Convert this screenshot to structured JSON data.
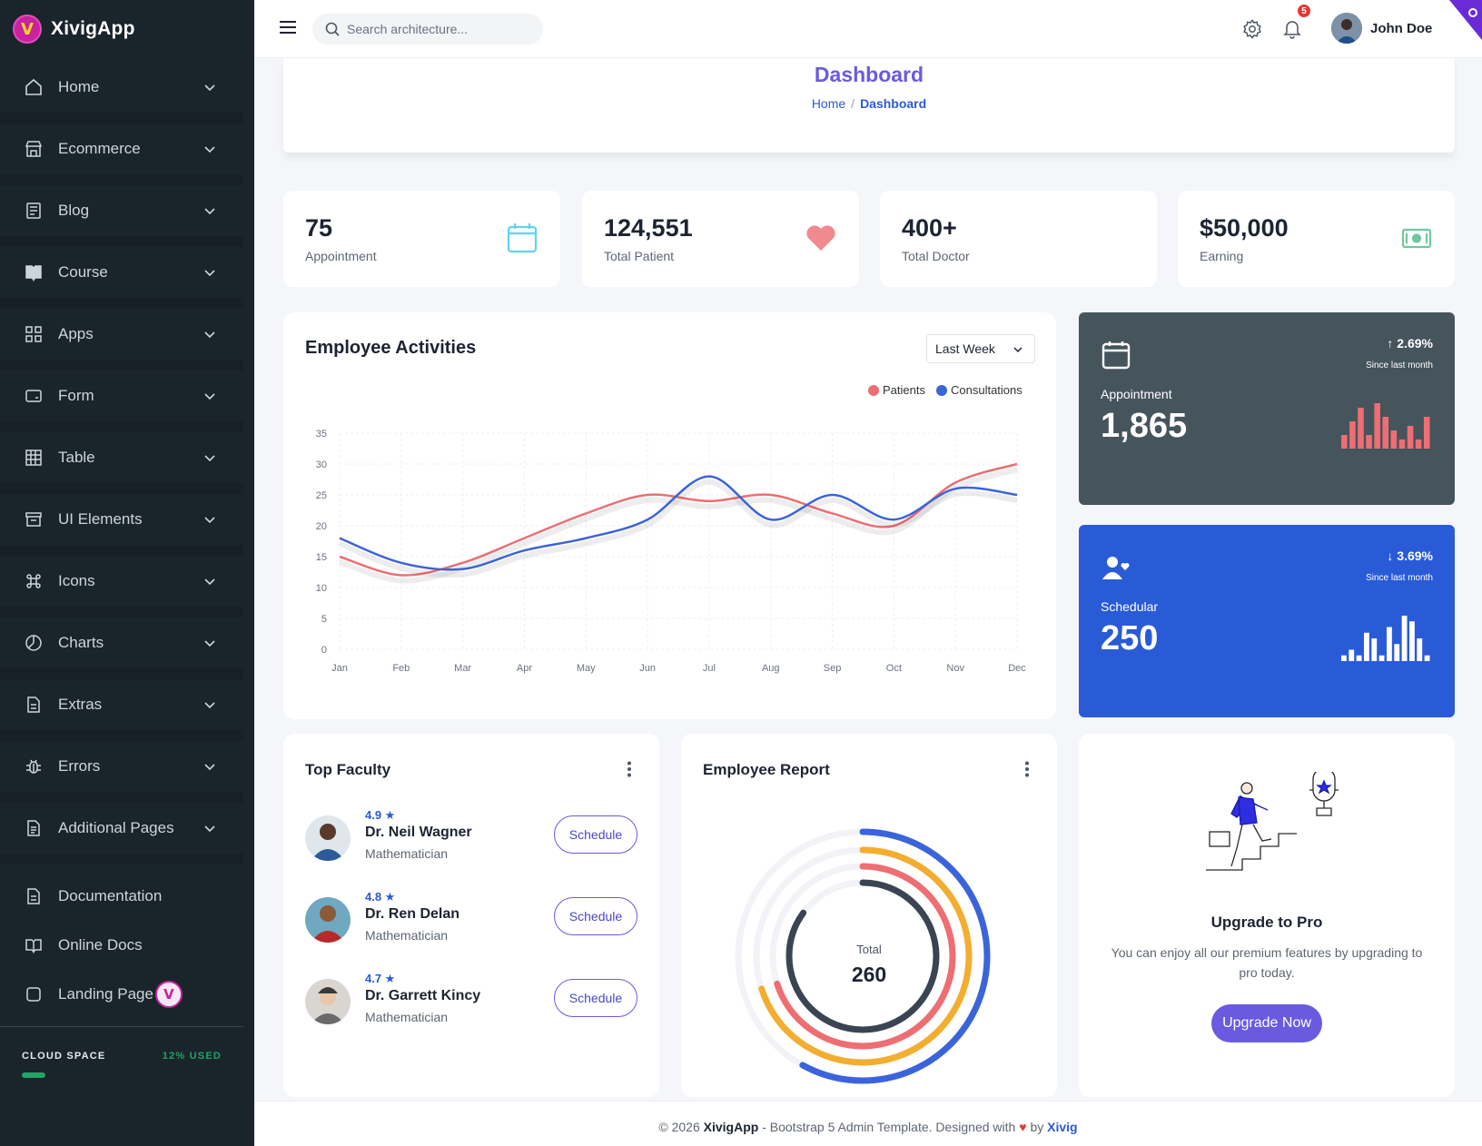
{
  "brand": {
    "name": "XivigApp",
    "logo_letter": "V"
  },
  "sidebar": {
    "items": [
      {
        "label": "Home",
        "icon": "home-icon"
      },
      {
        "label": "Ecommerce",
        "icon": "store-icon"
      },
      {
        "label": "Blog",
        "icon": "document-list-icon"
      },
      {
        "label": "Course",
        "icon": "book-open-icon"
      },
      {
        "label": "Apps",
        "icon": "grid-icon"
      },
      {
        "label": "Form",
        "icon": "form-card-icon"
      },
      {
        "label": "Table",
        "icon": "table-icon"
      },
      {
        "label": "UI Elements",
        "icon": "archive-box-icon"
      },
      {
        "label": "Icons",
        "icon": "command-icon"
      },
      {
        "label": "Charts",
        "icon": "pie-chart-icon"
      },
      {
        "label": "Extras",
        "icon": "file-icon"
      },
      {
        "label": "Errors",
        "icon": "bug-icon"
      },
      {
        "label": "Additional Pages",
        "icon": "file-text-icon"
      }
    ],
    "links": [
      {
        "label": "Documentation",
        "icon": "file-doc-icon"
      },
      {
        "label": "Online Docs",
        "icon": "book-icon"
      },
      {
        "label": "Landing Page",
        "icon": "square-icon"
      }
    ],
    "cloud": {
      "label": "CLOUD SPACE",
      "used": "12% USED",
      "used_fraction": 0.12
    }
  },
  "header": {
    "search_placeholder": "Search architecture...",
    "notifications": "5",
    "user": "John Doe"
  },
  "page": {
    "title": "Dashboard",
    "breadcrumb": [
      "Home",
      "/",
      "Dashboard"
    ]
  },
  "stats": [
    {
      "value": "75",
      "label": "Appointment",
      "icon": "calendar-icon",
      "color": "#5fd3ef"
    },
    {
      "value": "124,551",
      "label": "Total Patient",
      "icon": "heart-icon",
      "color": "#f08a8f"
    },
    {
      "value": "400+",
      "label": "Total Doctor",
      "icon": "none",
      "color": "#ffffff"
    },
    {
      "value": "$50,000",
      "label": "Earning",
      "icon": "money-icon",
      "color": "#6fc7a0"
    }
  ],
  "activities": {
    "title": "Employee Activities",
    "filter": "Last Week",
    "legend": [
      "Patients",
      "Consultations"
    ]
  },
  "chart_data": {
    "type": "line",
    "categories": [
      "Jan",
      "Feb",
      "Mar",
      "Apr",
      "May",
      "Jun",
      "Jul",
      "Aug",
      "Sep",
      "Oct",
      "Nov",
      "Dec"
    ],
    "series": [
      {
        "name": "Patients",
        "color": "#ee6e73",
        "values": [
          15,
          12,
          14,
          18,
          22,
          25,
          24,
          25,
          22,
          20,
          27,
          30
        ]
      },
      {
        "name": "Consultations",
        "color": "#3b64db",
        "values": [
          18,
          14,
          13,
          16,
          18,
          21,
          28,
          21,
          25,
          21,
          26,
          25
        ]
      }
    ],
    "yticks": [
      "0",
      "5",
      "10",
      "15",
      "20",
      "25",
      "30",
      "35"
    ],
    "ylim": [
      0,
      35
    ],
    "grid": true,
    "legend_position": "top-right",
    "smooth": true
  },
  "mini_cards": [
    {
      "label": "Appointment",
      "value": "1,865",
      "change": "2.69%",
      "direction": "up",
      "since": "Since last month",
      "bg": "#46545c",
      "bar_color": "#ee6e73",
      "bars": [
        3,
        6,
        9,
        3,
        10,
        7,
        4,
        2,
        5,
        2,
        7
      ]
    },
    {
      "label": "Schedular",
      "value": "250",
      "change": "3.69%",
      "direction": "down",
      "since": "Since last month",
      "bg": "#2a5bd7",
      "bar_color": "#ffffff",
      "bars": [
        1,
        2,
        1,
        5,
        4,
        1,
        6,
        3,
        8,
        7,
        4,
        1
      ]
    }
  ],
  "faculty": {
    "title": "Top Faculty",
    "members": [
      {
        "rating": "4.9 ★",
        "name": "Dr. Neil Wagner",
        "role": "Mathematician",
        "action": "Schedule"
      },
      {
        "rating": "4.8 ★",
        "name": "Dr. Ren Delan",
        "role": "Mathematician",
        "action": "Schedule"
      },
      {
        "rating": "4.7 ★",
        "name": "Dr. Garrett Kincy",
        "role": "Mathematician",
        "action": "Schedule"
      }
    ]
  },
  "report": {
    "title": "Employee Report",
    "center_label": "Total",
    "center_value": "260",
    "rings": [
      {
        "color": "#3b64db",
        "fraction": 0.58
      },
      {
        "color": "#f3ad2f",
        "fraction": 0.7
      },
      {
        "color": "#ee6e73",
        "fraction": 0.7
      },
      {
        "color": "#3a4452",
        "fraction": 0.85
      }
    ]
  },
  "upgrade": {
    "title": "Upgrade to Pro",
    "text": "You can enjoy all our premium features by upgrading to pro today.",
    "button": "Upgrade Now"
  },
  "footer": {
    "prefix": "© 2026",
    "brand": "XivigApp",
    "middle": "- Bootstrap 5 Admin Template. Designed with",
    "heart": "♥",
    "by": "by",
    "author": "Xivig"
  }
}
